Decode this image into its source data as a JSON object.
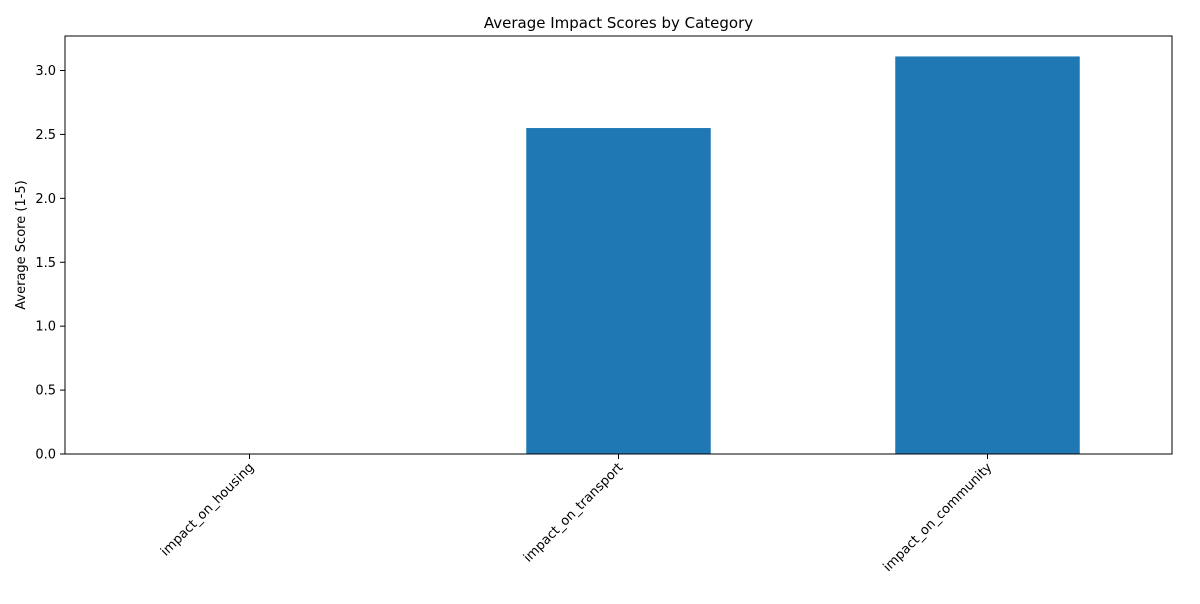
{
  "chart_data": {
    "type": "bar",
    "title": "Average Impact Scores by Category",
    "xlabel": "",
    "ylabel": "Average Score (1-5)",
    "categories": [
      "impact_on_housing",
      "impact_on_transport",
      "impact_on_community"
    ],
    "values": [
      0.0,
      2.55,
      3.11
    ],
    "ylim": [
      0,
      3.27
    ],
    "yticks": [
      "0.0",
      "0.5",
      "1.0",
      "1.5",
      "2.0",
      "2.5",
      "3.0"
    ],
    "grid": false,
    "legend": "none",
    "bar_color": "#1f77b4"
  }
}
